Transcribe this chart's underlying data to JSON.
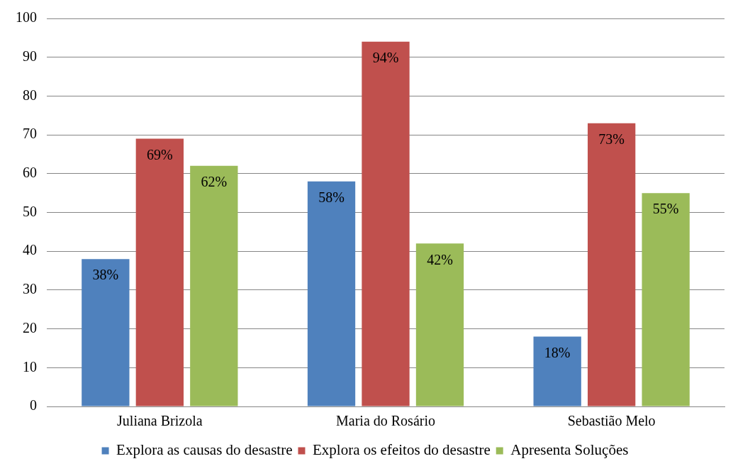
{
  "chart_data": {
    "type": "bar",
    "categories": [
      "Juliana Brizola",
      "Maria do Rosário",
      "Sebastião Melo"
    ],
    "series": [
      {
        "name": "Explora as causas do desastre",
        "color": "#4f81bd",
        "values": [
          38,
          58,
          18
        ],
        "value_labels": [
          "38%",
          "58%",
          "18%"
        ]
      },
      {
        "name": "Explora os efeitos do desastre",
        "color": "#c0504d",
        "values": [
          69,
          94,
          73
        ],
        "value_labels": [
          "69%",
          "94%",
          "73%"
        ]
      },
      {
        "name": "Apresenta Soluções",
        "color": "#9bbb59",
        "values": [
          62,
          42,
          55
        ],
        "value_labels": [
          "62%",
          "42%",
          "55%"
        ]
      }
    ],
    "ylim": [
      0,
      100
    ],
    "yticks": [
      0,
      10,
      20,
      30,
      40,
      50,
      60,
      70,
      80,
      90,
      100
    ],
    "grid": "y",
    "legend": "bottom"
  }
}
